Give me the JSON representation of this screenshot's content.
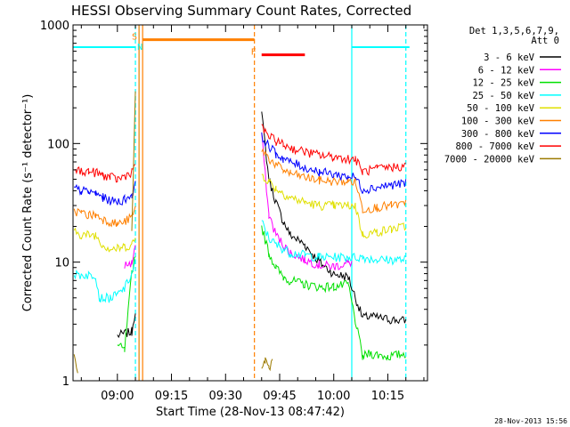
{
  "chart_data": {
    "type": "line",
    "title": "HESSI Observing Summary Count Rates, Corrected",
    "xlabel": "Start Time (28-Nov-13 08:47:42)",
    "ylabel": "Corrected Count Rate (s⁻¹ detector⁻¹)",
    "yscale": "log",
    "ylim": [
      1,
      1000
    ],
    "xlim": [
      "08:47:42",
      "10:26:00"
    ],
    "y_ticks": [
      "1",
      "10",
      "100",
      "1000"
    ],
    "x_ticks": [
      "09:00",
      "09:15",
      "09:30",
      "09:45",
      "10:00",
      "10:15"
    ],
    "grid": false,
    "legend": {
      "title_lines": [
        "Det 1,3,5,6,7,9,",
        "Att 0"
      ],
      "placement": "right"
    },
    "timestamp": "28-Nov-2013 15:56",
    "annotations": {
      "saa_label": "S",
      "night_label": "N",
      "flare_label": "F",
      "night_bar_level": 750,
      "saa_bar_level": 650,
      "flare_bar_level": 560
    },
    "series": [
      {
        "name": "3 - 6 keV",
        "color": "#000000",
        "x": [
          "08:48",
          "08:54",
          "09:00",
          "09:04",
          "09:05",
          "09:06",
          "09:38",
          "09:40",
          "09:42",
          "09:44",
          "09:46",
          "09:48",
          "09:52",
          "09:56",
          "10:00",
          "10:04",
          "10:08",
          "10:10",
          "10:15",
          "10:20"
        ],
        "y": [
          null,
          null,
          2.4,
          2.6,
          4,
          null,
          null,
          180,
          50,
          32,
          22,
          17,
          14,
          10,
          8,
          7.5,
          3.4,
          3.5,
          3.3,
          3.2
        ]
      },
      {
        "name": "6 - 12 keV",
        "color": "#ff00ff",
        "x": [
          "09:02",
          "09:04",
          "09:05",
          "09:06",
          "09:38",
          "09:40",
          "09:42",
          "09:44",
          "09:46",
          "09:48",
          "09:52",
          "09:56",
          "10:00",
          "10:04",
          "10:05"
        ],
        "y": [
          9.5,
          9.8,
          14,
          null,
          null,
          120,
          25,
          17,
          14,
          12,
          10.5,
          9.5,
          9.2,
          9.8,
          10
        ]
      },
      {
        "name": "12 - 25 keV",
        "color": "#00e000",
        "x": [
          "08:48",
          "08:55",
          "09:00",
          "09:02",
          "09:04",
          "09:05",
          "09:06",
          "09:38",
          "09:40",
          "09:42",
          "09:44",
          "09:46",
          "09:48",
          "09:52",
          "09:56",
          "10:00",
          "10:04",
          "10:08",
          "10:10",
          "10:15",
          "10:20"
        ],
        "y": [
          null,
          null,
          2,
          1.8,
          8,
          12,
          null,
          null,
          20,
          12,
          9,
          7.5,
          7,
          6.5,
          6.2,
          6.2,
          6.5,
          1.6,
          1.7,
          1.6,
          1.7
        ]
      },
      {
        "name": "25 - 50 keV",
        "color": "#00ffff",
        "x": [
          "08:48",
          "08:52",
          "08:54",
          "08:55",
          "08:58",
          "09:00",
          "09:02",
          "09:04",
          "09:05",
          "09:06",
          "09:38",
          "09:40",
          "09:42",
          "09:44",
          "09:46",
          "09:48",
          "09:52",
          "09:56",
          "10:00",
          "10:04",
          "10:08",
          "10:12",
          "10:16",
          "10:20"
        ],
        "y": [
          7.8,
          7.8,
          7.8,
          5,
          5,
          5.3,
          6,
          8,
          10,
          null,
          null,
          22,
          16,
          14,
          13,
          12,
          11.5,
          11,
          11,
          11,
          11,
          10.5,
          10.5,
          10.5
        ]
      },
      {
        "name": "50 - 100 keV",
        "color": "#e0e000",
        "x": [
          "08:48",
          "08:50",
          "08:52",
          "08:54",
          "08:56",
          "08:58",
          "09:00",
          "09:02",
          "09:04",
          "09:05",
          "09:06",
          "09:38",
          "09:40",
          "09:42",
          "09:44",
          "09:46",
          "09:48",
          "09:52",
          "09:56",
          "10:00",
          "10:04",
          "10:06",
          "10:08",
          "10:12",
          "10:16",
          "10:20"
        ],
        "y": [
          18,
          17,
          17,
          17,
          14,
          13,
          13,
          13.5,
          14,
          16,
          null,
          null,
          55,
          48,
          42,
          38,
          35,
          32,
          30,
          30,
          30,
          30,
          17,
          18,
          19,
          20
        ]
      },
      {
        "name": "100 - 300 keV",
        "color": "#ff8000",
        "x": [
          "08:48",
          "08:50",
          "08:52",
          "08:54",
          "08:56",
          "08:58",
          "09:00",
          "09:02",
          "09:04",
          "09:05",
          "09:06",
          "09:38",
          "09:40",
          "09:42",
          "09:44",
          "09:46",
          "09:48",
          "09:52",
          "09:56",
          "10:00",
          "10:04",
          "10:06",
          "10:08",
          "10:12",
          "10:16",
          "10:20"
        ],
        "y": [
          27,
          26,
          25,
          25,
          23,
          22,
          21,
          22,
          24,
          28,
          null,
          null,
          90,
          75,
          66,
          60,
          56,
          52,
          49,
          48,
          48,
          48,
          28,
          29,
          30,
          31
        ]
      },
      {
        "name": "300 - 800 keV",
        "color": "#0000ff",
        "x": [
          "08:48",
          "08:50",
          "08:52",
          "08:54",
          "08:56",
          "08:58",
          "09:00",
          "09:02",
          "09:04",
          "09:05",
          "09:06",
          "09:38",
          "09:40",
          "09:42",
          "09:44",
          "09:46",
          "09:48",
          "09:52",
          "09:56",
          "10:00",
          "10:04",
          "10:06",
          "10:08",
          "10:12",
          "10:16",
          "10:20"
        ],
        "y": [
          42,
          40,
          39,
          38,
          35,
          33,
          32,
          34,
          37,
          45,
          null,
          null,
          115,
          95,
          82,
          75,
          70,
          63,
          58,
          55,
          53,
          52,
          41,
          43,
          45,
          46
        ]
      },
      {
        "name": "800 - 7000 keV",
        "color": "#ff0000",
        "x": [
          "08:48",
          "08:50",
          "08:52",
          "08:54",
          "08:56",
          "08:58",
          "09:00",
          "09:02",
          "09:04",
          "09:05",
          "09:06",
          "09:38",
          "09:40",
          "09:42",
          "09:44",
          "09:46",
          "09:48",
          "09:52",
          "09:56",
          "10:00",
          "10:04",
          "10:06",
          "10:08",
          "10:12",
          "10:16",
          "10:20"
        ],
        "y": [
          60,
          59,
          58,
          57,
          54,
          52,
          50,
          53,
          58,
          70,
          null,
          null,
          135,
          115,
          105,
          98,
          92,
          85,
          80,
          77,
          75,
          74,
          58,
          61,
          63,
          65
        ]
      },
      {
        "name": "7000 - 20000 keV",
        "color": "#9c7a00",
        "x": [
          "08:48",
          "08:49",
          "08:50",
          "09:04",
          "09:05",
          "09:06",
          "09:38",
          "09:40",
          "09:41",
          "09:42",
          "09:43"
        ],
        "y": [
          1.6,
          1.2,
          null,
          18,
          260,
          null,
          null,
          1.2,
          1.5,
          1.3,
          1.4
        ]
      }
    ]
  }
}
